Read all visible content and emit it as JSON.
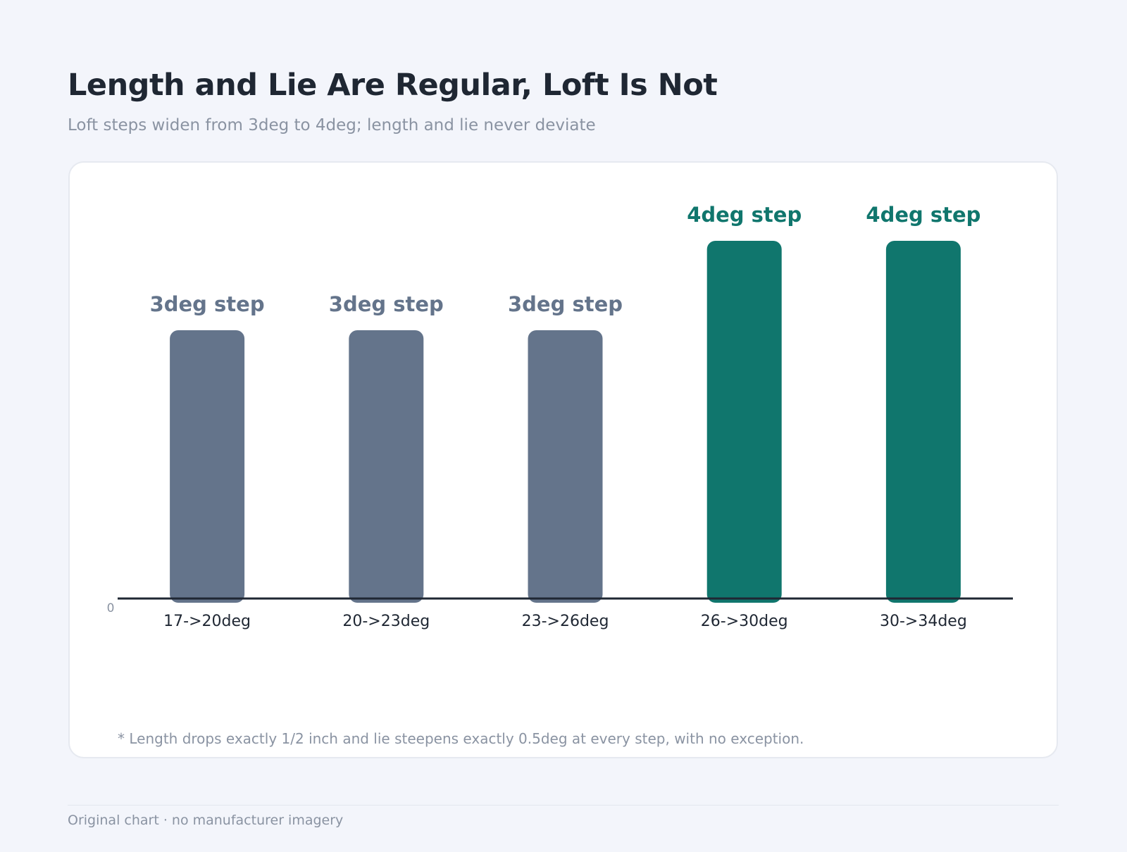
{
  "header": {
    "title": "Length and Lie Are Regular, Loft Is Not",
    "subtitle": "Loft steps widen from 3deg to 4deg; length and lie never deviate"
  },
  "chart_data": {
    "type": "bar",
    "categories": [
      "17->20deg",
      "20->23deg",
      "23->26deg",
      "26->30deg",
      "30->34deg"
    ],
    "values": [
      3,
      3,
      3,
      4,
      4
    ],
    "data_labels": [
      "3deg step",
      "3deg step",
      "3deg step",
      "4deg step",
      "4deg step"
    ],
    "ylim": [
      0,
      4
    ],
    "y_ticks": [
      "0"
    ],
    "grid": false,
    "colors": {
      "3deg": "#64748b",
      "4deg": "#10766d",
      "axis": "#1f2733"
    }
  },
  "footnote": "* Length drops exactly 1/2 inch and lie steepens exactly 0.5deg at every step, with no exception.",
  "footer": {
    "credit": "Original chart · no manufacturer imagery"
  }
}
